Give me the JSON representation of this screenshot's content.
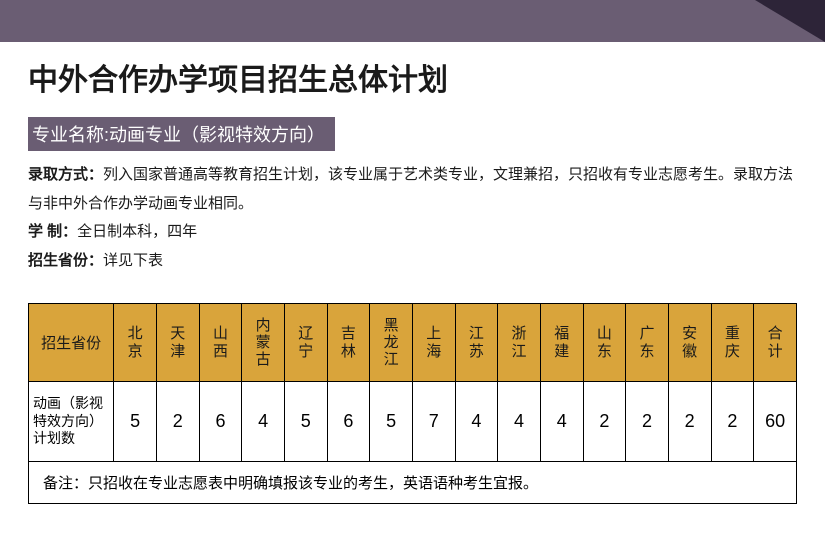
{
  "colors": {
    "top_band": "#6a5d73",
    "top_triangle": "#2d2438",
    "header_bg": "#d9a43b",
    "border": "#000000",
    "text": "#1a1a1a",
    "banner_text": "#ffffff",
    "page_bg": "#ffffff"
  },
  "main_title": "中外合作办学项目招生总体计划",
  "major_banner": "专业名称:动画专业（影视特效方向）",
  "info": {
    "admission_label": "录取方式：",
    "admission_text": "列入国家普通高等教育招生计划，该专业属于艺术类专业，文理兼招，只招收有专业志愿考生。录取方法与非中外合作办学动画专业相同。",
    "duration_label": "学  制：",
    "duration_text": "全日制本科，四年",
    "province_label": "招生省份：",
    "province_text": "详见下表"
  },
  "table": {
    "row_header_col": "招生省份",
    "provinces": [
      "北京",
      "天津",
      "山西",
      "内蒙古",
      "辽宁",
      "吉林",
      "黑龙江",
      "上海",
      "江苏",
      "浙江",
      "福建",
      "山东",
      "广东",
      "安徽",
      "重庆",
      "合计"
    ],
    "row_label": "动画（影视特效方向）计划数",
    "values": [
      5,
      2,
      6,
      4,
      5,
      6,
      5,
      7,
      4,
      4,
      4,
      2,
      2,
      2,
      2,
      60
    ],
    "note": "备注：只招收在专业志愿表中明确填报该专业的考生，英语语种考生宜报。"
  }
}
